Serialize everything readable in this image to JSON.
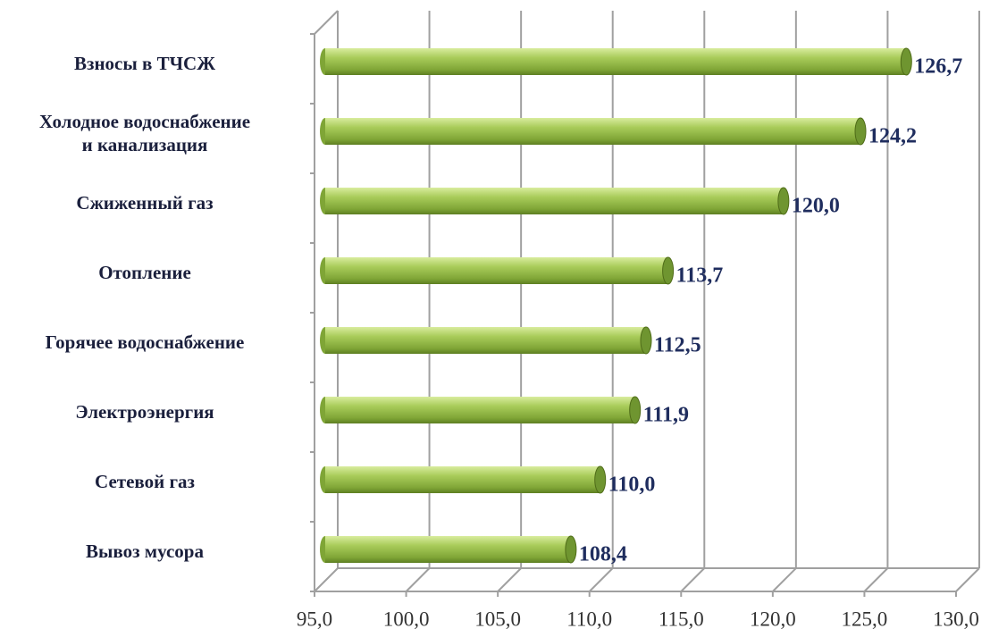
{
  "chart_data": {
    "type": "bar",
    "orientation": "horizontal",
    "categories": [
      "Взносы  в ТЧСЖ",
      "Холодное водоснабжение\nи канализация",
      "Сжиженный газ",
      "Отопление",
      "Горячее водоснабжение",
      "Электроэнергия",
      "Сетевой газ",
      "Вывоз мусора"
    ],
    "values": [
      126.7,
      124.2,
      120.0,
      113.7,
      112.5,
      111.9,
      110.0,
      108.4
    ],
    "value_labels": [
      "126,7",
      "124,2",
      "120,0",
      "113,7",
      "112,5",
      "111,9",
      "110,0",
      "108,4"
    ],
    "color": "#8fb540",
    "xlim": [
      95,
      130
    ],
    "xticks": [
      {
        "value": 95,
        "label": "95,0"
      },
      {
        "value": 100,
        "label": "100,0"
      },
      {
        "value": 105,
        "label": "105,0"
      },
      {
        "value": 110,
        "label": "110,0"
      },
      {
        "value": 115,
        "label": "115,0"
      },
      {
        "value": 120,
        "label": "120,0"
      },
      {
        "value": 125,
        "label": "125,0"
      },
      {
        "value": 130,
        "label": "130,0"
      }
    ],
    "grid": true
  }
}
